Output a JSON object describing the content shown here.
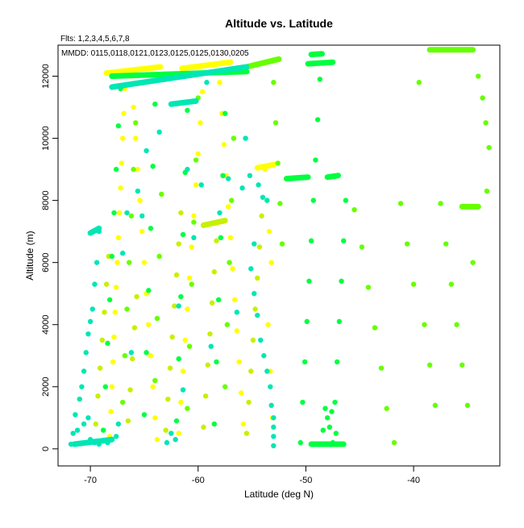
{
  "chart_data": {
    "type": "scatter",
    "title": "Altitude vs. Latitude",
    "xlabel": "Latitude (deg N)",
    "ylabel": "Altitude (m)",
    "xlim": [
      -73,
      -32
    ],
    "ylim": [
      -550,
      13000
    ],
    "xticks": [
      -70,
      -60,
      -50,
      -40
    ],
    "yticks": [
      0,
      2000,
      4000,
      6000,
      8000,
      10000,
      12000
    ],
    "grid": false,
    "legend": "none",
    "annotations": {
      "flights": "Flts: 1,2,3,4,5,6,7,8",
      "dates": "MMDD: 0115,0118,0121,0123,0125,0125,0130,0205"
    },
    "series": [
      {
        "color": "#ffff00",
        "points": [
          [
            -68.2,
            400
          ],
          [
            -68.1,
            1200
          ],
          [
            -68.0,
            2000
          ],
          [
            -67.9,
            2800
          ],
          [
            -67.8,
            3600
          ],
          [
            -67.7,
            4400
          ],
          [
            -67.6,
            5200
          ],
          [
            -67.5,
            6000
          ],
          [
            -67.4,
            6800
          ],
          [
            -67.3,
            7600
          ],
          [
            -67.2,
            8400
          ],
          [
            -67.1,
            9200
          ],
          [
            -67.0,
            10000
          ],
          [
            -66.9,
            10800
          ],
          [
            -66.8,
            11600
          ],
          [
            -66.2,
            12000
          ],
          [
            -66.0,
            11000
          ],
          [
            -65.8,
            10000
          ],
          [
            -65.6,
            9000
          ],
          [
            -65.4,
            8000
          ],
          [
            -65.2,
            7000
          ],
          [
            -65.0,
            6000
          ],
          [
            -64.8,
            5000
          ],
          [
            -64.6,
            4000
          ],
          [
            -64.4,
            3000
          ],
          [
            -64.2,
            2000
          ],
          [
            -64.0,
            1000
          ],
          [
            -63.8,
            300
          ],
          [
            -61.8,
            500
          ],
          [
            -61.6,
            1500
          ],
          [
            -61.4,
            2500
          ],
          [
            -61.2,
            3500
          ],
          [
            -61.0,
            4500
          ],
          [
            -60.8,
            5500
          ],
          [
            -60.6,
            6500
          ],
          [
            -60.4,
            7500
          ],
          [
            -60.2,
            8500
          ],
          [
            -60.0,
            9500
          ],
          [
            -59.8,
            10500
          ],
          [
            -59.6,
            11500
          ],
          [
            -58.0,
            11800
          ],
          [
            -57.8,
            10800
          ],
          [
            -57.6,
            9800
          ],
          [
            -57.4,
            8800
          ],
          [
            -57.2,
            7800
          ],
          [
            -57.0,
            6800
          ],
          [
            -56.8,
            5800
          ],
          [
            -56.6,
            4800
          ],
          [
            -56.4,
            3800
          ],
          [
            -56.2,
            2800
          ],
          [
            -56.0,
            1800
          ],
          [
            -55.8,
            800
          ],
          [
            -53.8,
            9000
          ],
          [
            -53.6,
            8000
          ],
          [
            -53.4,
            7000
          ],
          [
            -53.2,
            6000
          ],
          [
            -53.5,
            4000
          ],
          [
            -53.3,
            2500
          ],
          [
            -53.1,
            1000
          ]
        ],
        "segments": [
          [
            [
              -68.5,
              12100
            ],
            [
              -63.5,
              12300
            ]
          ],
          [
            [
              -61.5,
              12250
            ],
            [
              -57.0,
              12450
            ]
          ],
          [
            [
              -54.5,
              9050
            ],
            [
              -53.0,
              9150
            ]
          ]
        ]
      },
      {
        "color": "#c8f000",
        "points": [
          [
            -69.5,
            800
          ],
          [
            -69.3,
            1700
          ],
          [
            -69.1,
            2600
          ],
          [
            -68.9,
            3500
          ],
          [
            -68.7,
            4400
          ],
          [
            -68.5,
            5300
          ],
          [
            -68.3,
            6200
          ],
          [
            -66.5,
            900
          ],
          [
            -66.3,
            1900
          ],
          [
            -66.1,
            2900
          ],
          [
            -65.9,
            3900
          ],
          [
            -65.7,
            4900
          ],
          [
            -63.0,
            600
          ],
          [
            -62.8,
            1600
          ],
          [
            -62.6,
            2600
          ],
          [
            -62.4,
            3600
          ],
          [
            -62.2,
            4600
          ],
          [
            -62.0,
            5600
          ],
          [
            -61.8,
            6600
          ],
          [
            -61.6,
            7600
          ],
          [
            -59.5,
            700
          ],
          [
            -59.3,
            1700
          ],
          [
            -59.1,
            2700
          ],
          [
            -58.9,
            3700
          ],
          [
            -58.7,
            4700
          ],
          [
            -58.5,
            5700
          ],
          [
            -58.3,
            6700
          ],
          [
            -55.5,
            500
          ],
          [
            -55.3,
            1500
          ],
          [
            -55.1,
            2500
          ],
          [
            -54.9,
            3500
          ],
          [
            -54.7,
            4500
          ],
          [
            -54.5,
            5500
          ],
          [
            -54.3,
            6500
          ],
          [
            -54.1,
            7500
          ]
        ],
        "segments": [
          [
            [
              -59.5,
              7200
            ],
            [
              -57.5,
              7350
            ]
          ]
        ]
      },
      {
        "color": "#66ff00",
        "points": [
          [
            -67.0,
            1500
          ],
          [
            -66.8,
            3000
          ],
          [
            -66.6,
            4500
          ],
          [
            -66.4,
            6000
          ],
          [
            -66.2,
            7500
          ],
          [
            -66.0,
            9000
          ],
          [
            -65.8,
            10500
          ],
          [
            -64.0,
            2200
          ],
          [
            -63.8,
            4200
          ],
          [
            -63.6,
            6200
          ],
          [
            -63.4,
            8200
          ],
          [
            -61.0,
            1300
          ],
          [
            -60.8,
            3300
          ],
          [
            -60.6,
            5300
          ],
          [
            -60.4,
            7300
          ],
          [
            -60.2,
            9300
          ],
          [
            -60.0,
            11300
          ],
          [
            -57.5,
            2000
          ],
          [
            -57.3,
            4000
          ],
          [
            -57.1,
            6000
          ],
          [
            -56.9,
            8000
          ],
          [
            -56.7,
            10000
          ],
          [
            -53.0,
            11800
          ],
          [
            -52.8,
            10500
          ],
          [
            -52.6,
            9200
          ],
          [
            -52.4,
            7900
          ],
          [
            -52.2,
            6600
          ],
          [
            -45.5,
            7700
          ],
          [
            -44.8,
            6500
          ],
          [
            -44.2,
            5200
          ],
          [
            -43.6,
            3900
          ],
          [
            -43.0,
            2600
          ],
          [
            -42.5,
            1300
          ],
          [
            -41.8,
            200
          ],
          [
            -41.2,
            7900
          ],
          [
            -40.6,
            6600
          ],
          [
            -40.0,
            5300
          ],
          [
            -39.5,
            11800
          ],
          [
            -39.0,
            4000
          ],
          [
            -38.5,
            2700
          ],
          [
            -38.0,
            1400
          ],
          [
            -37.5,
            7900
          ],
          [
            -37.0,
            6600
          ],
          [
            -36.5,
            5300
          ],
          [
            -36.0,
            4000
          ],
          [
            -35.5,
            2700
          ],
          [
            -35.0,
            1400
          ],
          [
            -34.5,
            6000
          ],
          [
            -34.0,
            12000
          ],
          [
            -33.6,
            11300
          ],
          [
            -33.3,
            10500
          ],
          [
            -33.0,
            9700
          ],
          [
            -33.2,
            8300
          ]
        ],
        "segments": [
          [
            [
              -55.5,
              12300
            ],
            [
              -52.5,
              12550
            ]
          ],
          [
            [
              -38.5,
              12850
            ],
            [
              -34.5,
              12850
            ]
          ],
          [
            [
              -35.5,
              7800
            ],
            [
              -34.0,
              7800
            ]
          ]
        ]
      },
      {
        "color": "#00ff40",
        "points": [
          [
            -68.8,
            600
          ],
          [
            -68.6,
            2000
          ],
          [
            -68.4,
            3400
          ],
          [
            -68.2,
            4800
          ],
          [
            -68.0,
            6200
          ],
          [
            -67.8,
            7600
          ],
          [
            -67.6,
            9000
          ],
          [
            -67.4,
            10400
          ],
          [
            -67.2,
            11600
          ],
          [
            -65.0,
            1100
          ],
          [
            -64.8,
            3100
          ],
          [
            -64.6,
            5100
          ],
          [
            -64.4,
            7100
          ],
          [
            -64.2,
            9100
          ],
          [
            -64.0,
            11100
          ],
          [
            -62.0,
            900
          ],
          [
            -61.8,
            2900
          ],
          [
            -61.6,
            4900
          ],
          [
            -61.4,
            6900
          ],
          [
            -61.2,
            8900
          ],
          [
            -61.0,
            10900
          ],
          [
            -58.5,
            800
          ],
          [
            -58.3,
            2800
          ],
          [
            -58.1,
            4800
          ],
          [
            -57.9,
            6800
          ],
          [
            -57.7,
            8800
          ],
          [
            -57.5,
            10800
          ],
          [
            -50.5,
            200
          ],
          [
            -50.3,
            1500
          ],
          [
            -50.1,
            2800
          ],
          [
            -49.9,
            4100
          ],
          [
            -49.7,
            5400
          ],
          [
            -49.5,
            6700
          ],
          [
            -49.3,
            8000
          ],
          [
            -49.1,
            9300
          ],
          [
            -48.9,
            10600
          ],
          [
            -48.7,
            11900
          ],
          [
            -47.5,
            200
          ],
          [
            -47.3,
            1500
          ],
          [
            -47.1,
            2800
          ],
          [
            -46.9,
            4100
          ],
          [
            -46.7,
            5400
          ],
          [
            -46.5,
            6700
          ],
          [
            -46.3,
            8000
          ],
          [
            -48.0,
            1000
          ],
          [
            -48.2,
            1300
          ],
          [
            -47.8,
            700
          ],
          [
            -48.4,
            600
          ],
          [
            -47.6,
            1200
          ],
          [
            -47.2,
            500
          ]
        ],
        "segments": [
          [
            [
              -68.0,
              12000
            ],
            [
              -55.5,
              12150
            ]
          ],
          [
            [
              -49.8,
              12400
            ],
            [
              -47.5,
              12450
            ]
          ],
          [
            [
              -51.8,
              8700
            ],
            [
              -49.8,
              8750
            ]
          ],
          [
            [
              -48.0,
              8750
            ],
            [
              -47.0,
              8800
            ]
          ],
          [
            [
              -49.5,
              12700
            ],
            [
              -48.5,
              12720
            ]
          ],
          [
            [
              -49.5,
              150
            ],
            [
              -46.5,
              150
            ]
          ]
        ]
      },
      {
        "color": "#00e6b4",
        "points": [
          [
            -71.8,
            150
          ],
          [
            -71.6,
            500
          ],
          [
            -71.4,
            1100
          ],
          [
            -71.0,
            1600
          ],
          [
            -70.8,
            2000
          ],
          [
            -70.6,
            2500
          ],
          [
            -70.4,
            3100
          ],
          [
            -70.2,
            3700
          ],
          [
            -70.0,
            4100
          ],
          [
            -69.8,
            4500
          ],
          [
            -69.6,
            5300
          ],
          [
            -69.4,
            6000
          ],
          [
            -69.2,
            7000
          ],
          [
            -71.2,
            600
          ],
          [
            -70.6,
            800
          ],
          [
            -70.2,
            1000
          ],
          [
            -70.0,
            300
          ],
          [
            -69.6,
            200
          ],
          [
            -69.2,
            150
          ],
          [
            -68.8,
            250
          ],
          [
            -68.4,
            200
          ],
          [
            -67.6,
            400
          ],
          [
            -67.4,
            800
          ],
          [
            -67.0,
            6300
          ],
          [
            -66.6,
            7600
          ],
          [
            -66.2,
            3100
          ],
          [
            -65.6,
            8300
          ],
          [
            -65.2,
            7500
          ],
          [
            -64.8,
            9600
          ],
          [
            -63.6,
            10200
          ],
          [
            -62.9,
            200
          ],
          [
            -62.5,
            500
          ],
          [
            -62.1,
            300
          ],
          [
            -61.8,
            4600
          ],
          [
            -61.4,
            1900
          ],
          [
            -61.0,
            9000
          ],
          [
            -60.4,
            6800
          ],
          [
            -59.7,
            8500
          ],
          [
            -59.2,
            11800
          ],
          [
            -58.8,
            3300
          ],
          [
            -58.0,
            7600
          ],
          [
            -57.2,
            8700
          ],
          [
            -56.4,
            4400
          ],
          [
            -55.9,
            8400
          ],
          [
            -55.6,
            10000
          ],
          [
            -55.2,
            8800
          ],
          [
            -54.8,
            6600
          ],
          [
            -54.4,
            8500
          ],
          [
            -54.0,
            8100
          ],
          [
            -53.6,
            8000
          ],
          [
            -53.2,
            1400
          ],
          [
            -53.0,
            100
          ],
          [
            -53.0,
            400
          ],
          [
            -53.0,
            700
          ],
          [
            -53.0,
            1000
          ],
          [
            -53.3,
            2000
          ],
          [
            -53.6,
            2500
          ],
          [
            -53.9,
            3000
          ],
          [
            -54.2,
            3500
          ],
          [
            -54.5,
            4300
          ],
          [
            -54.8,
            5000
          ],
          [
            -55.1,
            5800
          ]
        ],
        "segments": [
          [
            [
              -71.5,
              150
            ],
            [
              -68.0,
              300
            ]
          ],
          [
            [
              -68.0,
              11650
            ],
            [
              -55.5,
              12300
            ]
          ],
          [
            [
              -70.0,
              6950
            ],
            [
              -69.2,
              7100
            ]
          ],
          [
            [
              -62.5,
              11100
            ],
            [
              -60.2,
              11200
            ]
          ]
        ]
      }
    ]
  }
}
